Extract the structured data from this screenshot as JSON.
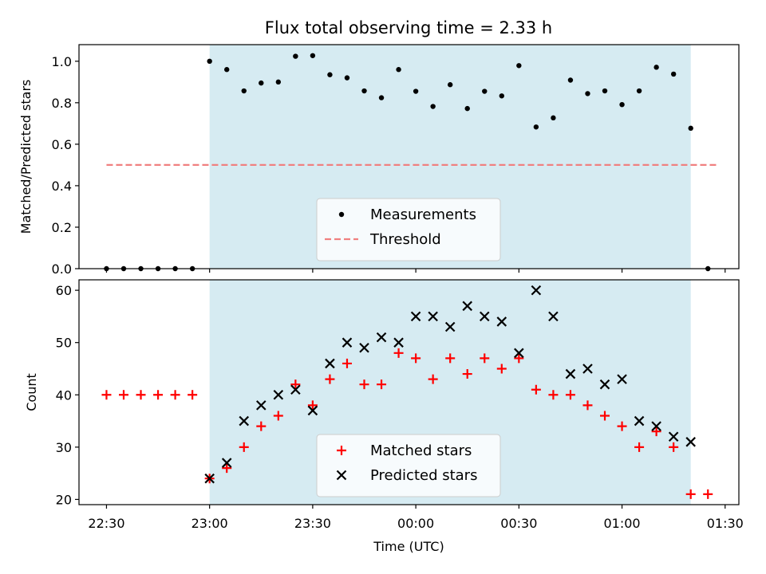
{
  "chart_data": [
    {
      "type": "scatter",
      "title": "Flux total observing time = 2.33 h",
      "ylabel": "Matched/Predicted stars",
      "ylim": [
        0,
        1.08
      ],
      "yticks": [
        "0.0",
        "0.2",
        "0.4",
        "0.6",
        "0.8",
        "1.0"
      ],
      "xlim": [
        "22:22",
        "01:34"
      ],
      "observing_window": [
        "23:00",
        "01:20"
      ],
      "threshold": {
        "name": "Threshold",
        "value": 0.5,
        "x_range": [
          "22:30",
          "01:28"
        ],
        "color": "#f08080"
      },
      "legend_position": "lower center",
      "series": [
        {
          "name": "Measurements",
          "color": "#000000",
          "marker": "dot",
          "points": [
            [
              "22:30",
              0.0
            ],
            [
              "22:35",
              0.0
            ],
            [
              "22:40",
              0.0
            ],
            [
              "22:45",
              0.0
            ],
            [
              "22:50",
              0.0
            ],
            [
              "22:55",
              0.0
            ],
            [
              "23:00",
              1.0
            ],
            [
              "23:05",
              0.96
            ],
            [
              "23:10",
              0.857
            ],
            [
              "23:15",
              0.895
            ],
            [
              "23:20",
              0.9
            ],
            [
              "23:25",
              1.024
            ],
            [
              "23:30",
              1.027
            ],
            [
              "23:35",
              0.935
            ],
            [
              "23:40",
              0.92
            ],
            [
              "23:45",
              0.857
            ],
            [
              "23:50",
              0.824
            ],
            [
              "23:55",
              0.96
            ],
            [
              "00:00",
              0.855
            ],
            [
              "00:05",
              0.782
            ],
            [
              "00:10",
              0.887
            ],
            [
              "00:15",
              0.772
            ],
            [
              "00:20",
              0.855
            ],
            [
              "00:25",
              0.833
            ],
            [
              "00:30",
              0.979
            ],
            [
              "00:35",
              0.683
            ],
            [
              "00:40",
              0.727
            ],
            [
              "00:45",
              0.909
            ],
            [
              "00:50",
              0.844
            ],
            [
              "00:55",
              0.857
            ],
            [
              "01:00",
              0.791
            ],
            [
              "01:05",
              0.857
            ],
            [
              "01:10",
              0.971
            ],
            [
              "01:15",
              0.938
            ],
            [
              "01:20",
              0.677
            ],
            [
              "01:25",
              0.0
            ]
          ]
        }
      ]
    },
    {
      "type": "scatter",
      "xlabel": "Time (UTC)",
      "ylabel": "Count",
      "ylim": [
        19,
        62
      ],
      "yticks": [
        "20",
        "30",
        "40",
        "50",
        "60"
      ],
      "xlim": [
        "22:22",
        "01:34"
      ],
      "xticks": [
        "22:30",
        "23:00",
        "23:30",
        "00:00",
        "00:30",
        "01:00",
        "01:30"
      ],
      "observing_window": [
        "23:00",
        "01:20"
      ],
      "legend_position": "lower center",
      "series": [
        {
          "name": "Matched stars",
          "color": "#ff0000",
          "marker": "plus",
          "points": [
            [
              "22:30",
              40
            ],
            [
              "22:35",
              40
            ],
            [
              "22:40",
              40
            ],
            [
              "22:45",
              40
            ],
            [
              "22:50",
              40
            ],
            [
              "22:55",
              40
            ],
            [
              "23:00",
              24
            ],
            [
              "23:05",
              26
            ],
            [
              "23:10",
              30
            ],
            [
              "23:15",
              34
            ],
            [
              "23:20",
              36
            ],
            [
              "23:25",
              42
            ],
            [
              "23:30",
              38
            ],
            [
              "23:35",
              43
            ],
            [
              "23:40",
              46
            ],
            [
              "23:45",
              42
            ],
            [
              "23:50",
              42
            ],
            [
              "23:55",
              48
            ],
            [
              "00:00",
              47
            ],
            [
              "00:05",
              43
            ],
            [
              "00:10",
              47
            ],
            [
              "00:15",
              44
            ],
            [
              "00:20",
              47
            ],
            [
              "00:25",
              45
            ],
            [
              "00:30",
              47
            ],
            [
              "00:35",
              41
            ],
            [
              "00:40",
              40
            ],
            [
              "00:45",
              40
            ],
            [
              "00:50",
              38
            ],
            [
              "00:55",
              36
            ],
            [
              "01:00",
              34
            ],
            [
              "01:05",
              30
            ],
            [
              "01:10",
              33
            ],
            [
              "01:15",
              30
            ],
            [
              "01:20",
              21
            ],
            [
              "01:25",
              21
            ]
          ]
        },
        {
          "name": "Predicted stars",
          "color": "#000000",
          "marker": "x",
          "points": [
            [
              "23:00",
              24
            ],
            [
              "23:05",
              27
            ],
            [
              "23:10",
              35
            ],
            [
              "23:15",
              38
            ],
            [
              "23:20",
              40
            ],
            [
              "23:25",
              41
            ],
            [
              "23:30",
              37
            ],
            [
              "23:35",
              46
            ],
            [
              "23:40",
              50
            ],
            [
              "23:45",
              49
            ],
            [
              "23:50",
              51
            ],
            [
              "23:55",
              50
            ],
            [
              "00:00",
              55
            ],
            [
              "00:05",
              55
            ],
            [
              "00:10",
              53
            ],
            [
              "00:15",
              57
            ],
            [
              "00:20",
              55
            ],
            [
              "00:25",
              54
            ],
            [
              "00:30",
              48
            ],
            [
              "00:35",
              60
            ],
            [
              "00:40",
              55
            ],
            [
              "00:45",
              44
            ],
            [
              "00:50",
              45
            ],
            [
              "00:55",
              42
            ],
            [
              "01:00",
              43
            ],
            [
              "01:05",
              35
            ],
            [
              "01:10",
              34
            ],
            [
              "01:15",
              32
            ],
            [
              "01:20",
              31
            ]
          ]
        }
      ]
    }
  ]
}
